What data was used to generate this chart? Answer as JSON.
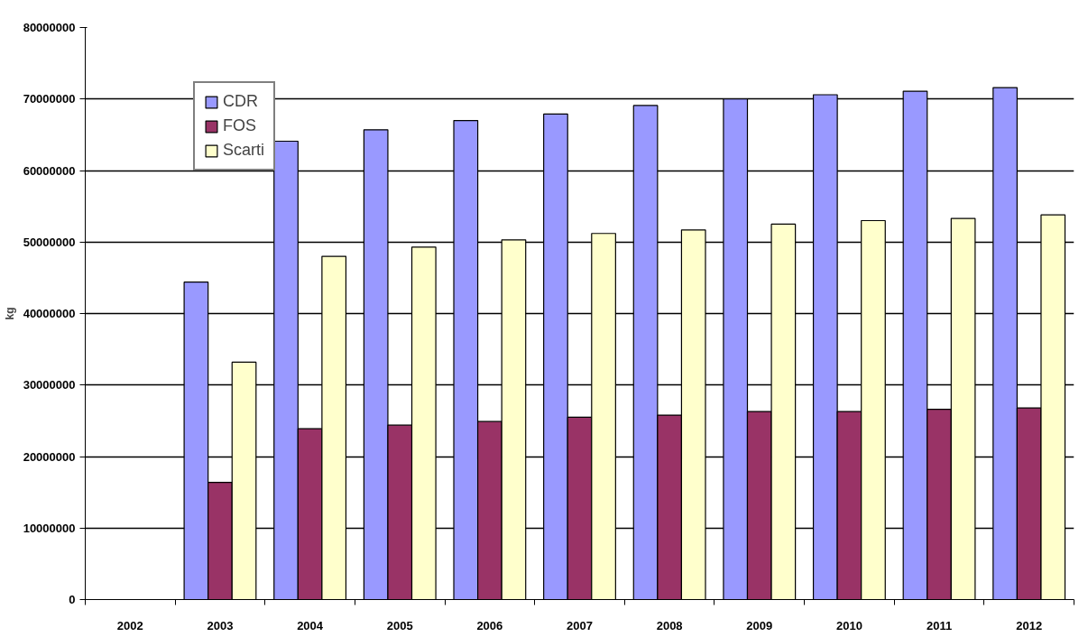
{
  "chart_data": {
    "type": "bar",
    "ylabel": "kg",
    "categories": [
      "2002",
      "2003",
      "2004",
      "2005",
      "2006",
      "2007",
      "2008",
      "2009",
      "2010",
      "2011",
      "2012"
    ],
    "series": [
      {
        "name": "CDR",
        "color": "#9999ff",
        "values": [
          null,
          44400000,
          64100000,
          65700000,
          67000000,
          67900000,
          69100000,
          70000000,
          70600000,
          71100000,
          71600000
        ]
      },
      {
        "name": "FOS",
        "color": "#993366",
        "values": [
          null,
          16400000,
          23900000,
          24400000,
          24900000,
          25500000,
          25800000,
          26300000,
          26300000,
          26600000,
          26800000
        ]
      },
      {
        "name": "Scarti",
        "color": "#ffffcc",
        "values": [
          null,
          33200000,
          48000000,
          49300000,
          50300000,
          51200000,
          51700000,
          52500000,
          53000000,
          53300000,
          53800000
        ]
      }
    ],
    "ylim": [
      0,
      80000000
    ],
    "yticks": [
      0,
      10000000,
      20000000,
      30000000,
      40000000,
      50000000,
      60000000,
      70000000,
      80000000
    ],
    "grid": "y",
    "legend": "top left"
  }
}
